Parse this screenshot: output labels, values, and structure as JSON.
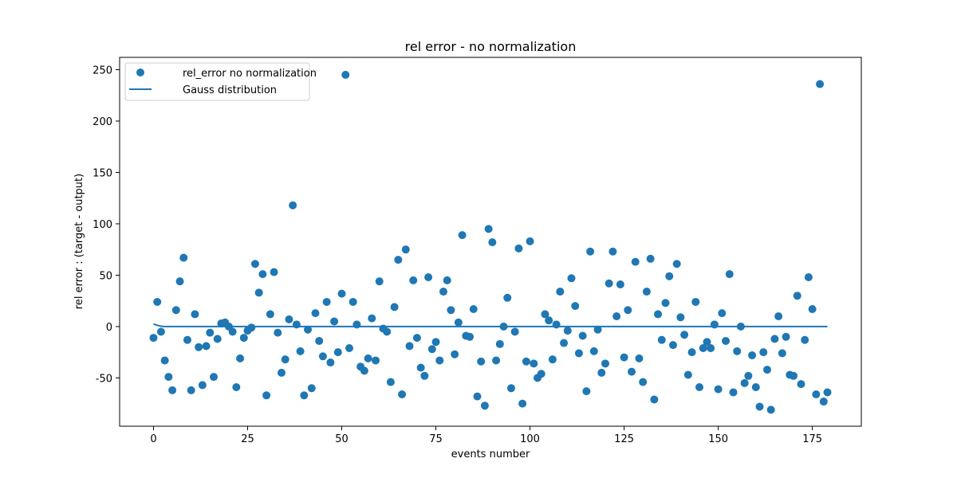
{
  "chart_data": {
    "type": "scatter",
    "title": "rel error - no normalization",
    "xlabel": "events number",
    "ylabel": "rel error : (target - output)",
    "xlim": [
      -9,
      188
    ],
    "ylim": [
      -97,
      262
    ],
    "xticks": [
      0,
      25,
      50,
      75,
      100,
      125,
      150,
      175
    ],
    "yticks": [
      -50,
      0,
      50,
      100,
      150,
      200,
      250
    ],
    "legend_position": "upper left",
    "colors": {
      "series": "#1f77b4"
    },
    "series": [
      {
        "name": "rel_error no normalization",
        "kind": "scatter",
        "x": [
          0,
          1,
          2,
          3,
          4,
          5,
          6,
          7,
          8,
          9,
          10,
          11,
          12,
          13,
          14,
          15,
          16,
          17,
          18,
          19,
          20,
          21,
          22,
          23,
          24,
          25,
          26,
          27,
          28,
          29,
          30,
          31,
          32,
          33,
          34,
          35,
          36,
          37,
          38,
          39,
          40,
          41,
          42,
          43,
          44,
          45,
          46,
          47,
          48,
          49,
          50,
          51,
          52,
          53,
          54,
          55,
          56,
          57,
          58,
          59,
          60,
          61,
          62,
          63,
          64,
          65,
          66,
          67,
          68,
          69,
          70,
          71,
          72,
          73,
          74,
          75,
          76,
          77,
          78,
          79,
          80,
          81,
          82,
          83,
          84,
          85,
          86,
          87,
          88,
          89,
          90,
          91,
          92,
          93,
          94,
          95,
          96,
          97,
          98,
          99,
          100,
          101,
          102,
          103,
          104,
          105,
          106,
          107,
          108,
          109,
          110,
          111,
          112,
          113,
          114,
          115,
          116,
          117,
          118,
          119,
          120,
          121,
          122,
          123,
          124,
          125,
          126,
          127,
          128,
          129,
          130,
          131,
          132,
          133,
          134,
          135,
          136,
          137,
          138,
          139,
          140,
          141,
          142,
          143,
          144,
          145,
          146,
          147,
          148,
          149,
          150,
          151,
          152,
          153,
          154,
          155,
          156,
          157,
          158,
          159,
          160,
          161,
          162,
          163,
          164,
          165,
          166,
          167,
          168,
          169,
          170,
          171,
          172,
          173,
          174,
          175,
          176,
          177,
          178,
          179
        ],
        "y": [
          -11,
          24,
          -5,
          -33,
          -49,
          -62,
          16,
          44,
          67,
          -13,
          -62,
          12,
          -20,
          -57,
          -19,
          -6,
          -49,
          -12,
          3,
          4,
          0,
          -5,
          -59,
          -31,
          -11,
          -4,
          -1,
          61,
          33,
          51,
          -67,
          12,
          53,
          -6,
          -45,
          -32,
          7,
          118,
          2,
          -24,
          -67,
          -3,
          -60,
          13,
          -14,
          -29,
          24,
          -35,
          5,
          -25,
          32,
          245,
          -21,
          24,
          2,
          -39,
          -43,
          -31,
          8,
          -33,
          44,
          -2,
          -5,
          -54,
          19,
          65,
          -66,
          75,
          -19,
          45,
          -11,
          -40,
          -48,
          48,
          -22,
          -15,
          -33,
          34,
          45,
          16,
          -27,
          4,
          89,
          -9,
          -10,
          17,
          -68,
          -34,
          -77,
          95,
          82,
          -33,
          -17,
          0,
          28,
          -60,
          -5,
          76,
          -75,
          -34,
          83,
          -36,
          -50,
          -46,
          12,
          6,
          -32,
          2,
          34,
          -16,
          -4,
          47,
          20,
          -26,
          -9,
          -63,
          73,
          -24,
          -3,
          -45,
          -36,
          42,
          73,
          10,
          41,
          -30,
          16,
          -44,
          63,
          -31,
          -54,
          34,
          66,
          -71,
          12,
          -13,
          23,
          49,
          -18,
          61,
          9,
          -8,
          -47,
          -25,
          24,
          -59,
          -21,
          -15,
          -21,
          2,
          -61,
          13,
          -14,
          51,
          -64,
          -24,
          0,
          -55,
          -48,
          -28,
          -59,
          -78,
          -25,
          -42,
          -81,
          -12,
          10,
          -26,
          -10,
          -47,
          -48,
          30,
          -56,
          -13,
          48,
          17,
          -66,
          236,
          -73,
          -64
        ]
      },
      {
        "name": "Gauss distribution",
        "kind": "line",
        "x": [
          0,
          1,
          2,
          3,
          4,
          5,
          10,
          20,
          30,
          40,
          50,
          60,
          70,
          80,
          90,
          100,
          110,
          120,
          130,
          140,
          150,
          160,
          170,
          179
        ],
        "y": [
          2.5,
          1.2,
          0.3,
          0,
          0,
          0,
          0,
          0,
          0,
          0,
          0,
          0,
          0,
          0,
          0,
          0,
          0,
          0,
          0,
          0,
          0,
          0,
          0,
          0
        ]
      }
    ]
  }
}
